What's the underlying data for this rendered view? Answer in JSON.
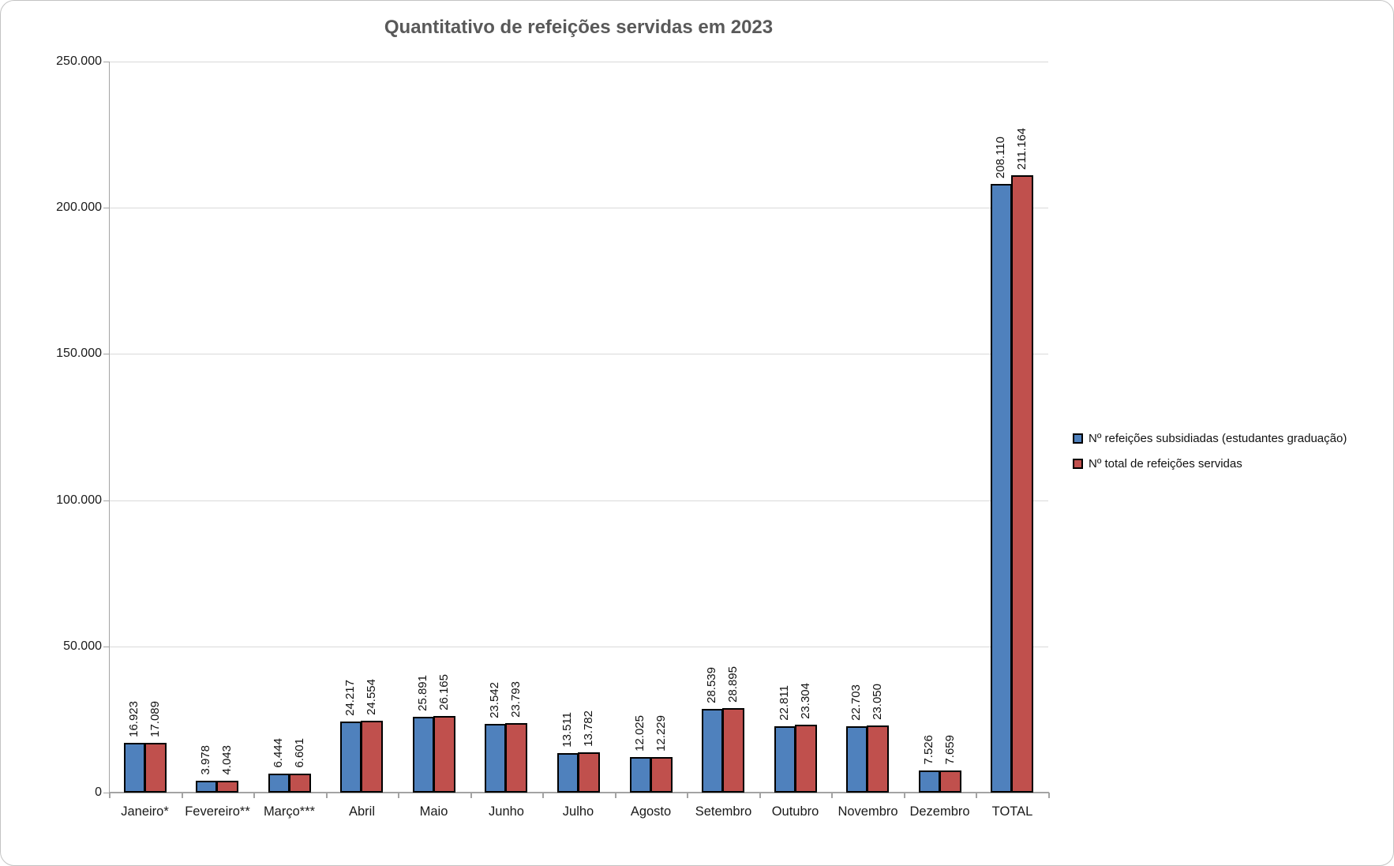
{
  "chart_data": {
    "type": "bar",
    "title": "Quantitativo de refeições servidas em 2023",
    "title_color": "#595959",
    "categories": [
      "Janeiro*",
      "Fevereiro**",
      "Março***",
      "Abril",
      "Maio",
      "Junho",
      "Julho",
      "Agosto",
      "Setembro",
      "Outubro",
      "Novembro",
      "Dezembro",
      "TOTAL"
    ],
    "series": [
      {
        "name": "Nº refeições subsidiadas (estudantes graduação)",
        "color": "#4F81BD",
        "values": [
          16923,
          3978,
          6444,
          24217,
          25891,
          23542,
          13511,
          12025,
          28539,
          22811,
          22703,
          7526,
          208110
        ],
        "labels": [
          "16.923",
          "3.978",
          "6.444",
          "24.217",
          "25.891",
          "23.542",
          "13.511",
          "12.025",
          "28.539",
          "22.811",
          "22.703",
          "7.526",
          "208.110"
        ]
      },
      {
        "name": "Nº total de refeições servidas",
        "color": "#C0504D",
        "values": [
          17089,
          4043,
          6601,
          24554,
          26165,
          23793,
          13782,
          12229,
          28895,
          23304,
          23050,
          7659,
          211164
        ],
        "labels": [
          "17.089",
          "4.043",
          "6.601",
          "24.554",
          "26.165",
          "23.793",
          "13.782",
          "12.229",
          "28.895",
          "23.304",
          "23.050",
          "7.659",
          "211.164"
        ]
      }
    ],
    "y_axis": {
      "min": 0,
      "max": 250000,
      "ticks": [
        {
          "value": 0,
          "label": "0"
        },
        {
          "value": 50000,
          "label": "50.000"
        },
        {
          "value": 100000,
          "label": "100.000"
        },
        {
          "value": 150000,
          "label": "150.000"
        },
        {
          "value": 200000,
          "label": "200.000"
        },
        {
          "value": 250000,
          "label": "250.000"
        }
      ]
    },
    "grid": true,
    "legend_position": "right",
    "bar_border_color": "#000000",
    "gridline_color": "#d9d9d9",
    "axis_color": "#a3a3a3"
  }
}
